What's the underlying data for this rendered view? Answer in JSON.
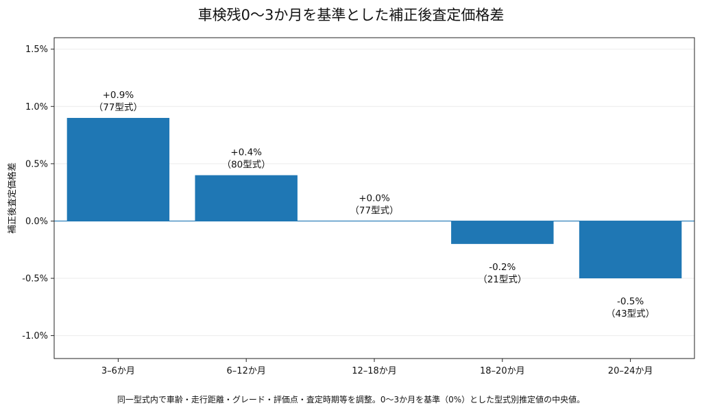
{
  "chart_data": {
    "type": "bar",
    "title": "車検残0〜3か月を基準とした補正後査定価格差",
    "xlabel": "",
    "ylabel": "補正後査定価格差",
    "categories": [
      "3–6か月",
      "6–12か月",
      "12–18か月",
      "18–20か月",
      "20–24か月"
    ],
    "values": [
      0.9,
      0.4,
      0.0,
      -0.2,
      -0.5
    ],
    "value_labels": [
      "+0.9%",
      "+0.4%",
      "+0.0%",
      "-0.2%",
      "-0.5%"
    ],
    "count_labels": [
      "（77型式）",
      "（80型式）",
      "（77型式）",
      "（21型式）",
      "（43型式）"
    ],
    "ylim": [
      -1.2,
      1.6
    ],
    "yticks": [
      -1.0,
      -0.5,
      0.0,
      0.5,
      1.0,
      1.5
    ],
    "ytick_labels": [
      "-1.0%",
      "-0.5%",
      "0.0%",
      "0.5%",
      "1.0%",
      "1.5%"
    ],
    "grid": true,
    "bar_color": "#1f77b4",
    "zero_line_color": "#1f77b4",
    "footnote": "同一型式内で車齢・走行距離・グレード・評価点・査定時期等を調整。0〜3か月を基準（0%）とした型式別推定値の中央値。"
  }
}
